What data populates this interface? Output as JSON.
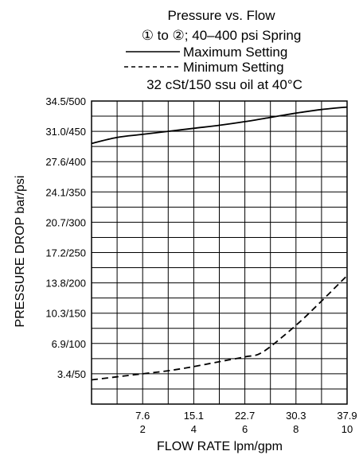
{
  "chart_data": {
    "type": "line",
    "title": "Pressure vs. Flow",
    "subtitle": "① to ②; 40–400 psi Spring",
    "legend": [
      {
        "label": "Maximum Setting",
        "style": "solid"
      },
      {
        "label": "Minimum Setting",
        "style": "dashed"
      }
    ],
    "condition": "32 cSt/150 ssu oil at 40°C",
    "xlabel": "FLOW RATE lpm/gpm",
    "ylabel": "PRESSURE DROP bar/psi",
    "x_ticks": [
      {
        "gpm": 2,
        "top": "7.6",
        "bottom": "2"
      },
      {
        "gpm": 4,
        "top": "15.1",
        "bottom": "4"
      },
      {
        "gpm": 6,
        "top": "22.7",
        "bottom": "6"
      },
      {
        "gpm": 8,
        "top": "30.3",
        "bottom": "8"
      },
      {
        "gpm": 10,
        "top": "37.9",
        "bottom": "10"
      }
    ],
    "y_ticks": [
      {
        "psi": 50,
        "label": "3.4/50"
      },
      {
        "psi": 100,
        "label": "6.9/100"
      },
      {
        "psi": 150,
        "label": "10.3/150"
      },
      {
        "psi": 200,
        "label": "13.8/200"
      },
      {
        "psi": 250,
        "label": "17.2/250"
      },
      {
        "psi": 300,
        "label": "20.7/300"
      },
      {
        "psi": 350,
        "label": "24.1/350"
      },
      {
        "psi": 400,
        "label": "27.6/400"
      },
      {
        "psi": 450,
        "label": "31.0/450"
      },
      {
        "psi": 500,
        "label": "34.5/500"
      }
    ],
    "xlim": [
      0,
      10
    ],
    "ylim": [
      0,
      500
    ],
    "x_units": "gpm",
    "y_units": "psi",
    "grid": true,
    "legend_placement": "top",
    "series": [
      {
        "name": "Maximum Setting",
        "style": "solid",
        "points": [
          [
            0,
            430
          ],
          [
            1,
            440
          ],
          [
            2,
            445
          ],
          [
            3,
            450
          ],
          [
            4,
            455
          ],
          [
            5,
            460
          ],
          [
            6,
            466
          ],
          [
            7,
            473
          ],
          [
            8,
            480
          ],
          [
            9,
            486
          ],
          [
            10,
            490
          ]
        ]
      },
      {
        "name": "Minimum Setting",
        "style": "dashed",
        "points": [
          [
            0,
            40
          ],
          [
            1,
            45
          ],
          [
            2,
            50
          ],
          [
            3,
            55
          ],
          [
            4,
            62
          ],
          [
            5,
            70
          ],
          [
            6,
            78
          ],
          [
            6.7,
            86
          ],
          [
            8,
            130
          ],
          [
            9,
            170
          ],
          [
            10,
            212
          ]
        ]
      }
    ]
  }
}
